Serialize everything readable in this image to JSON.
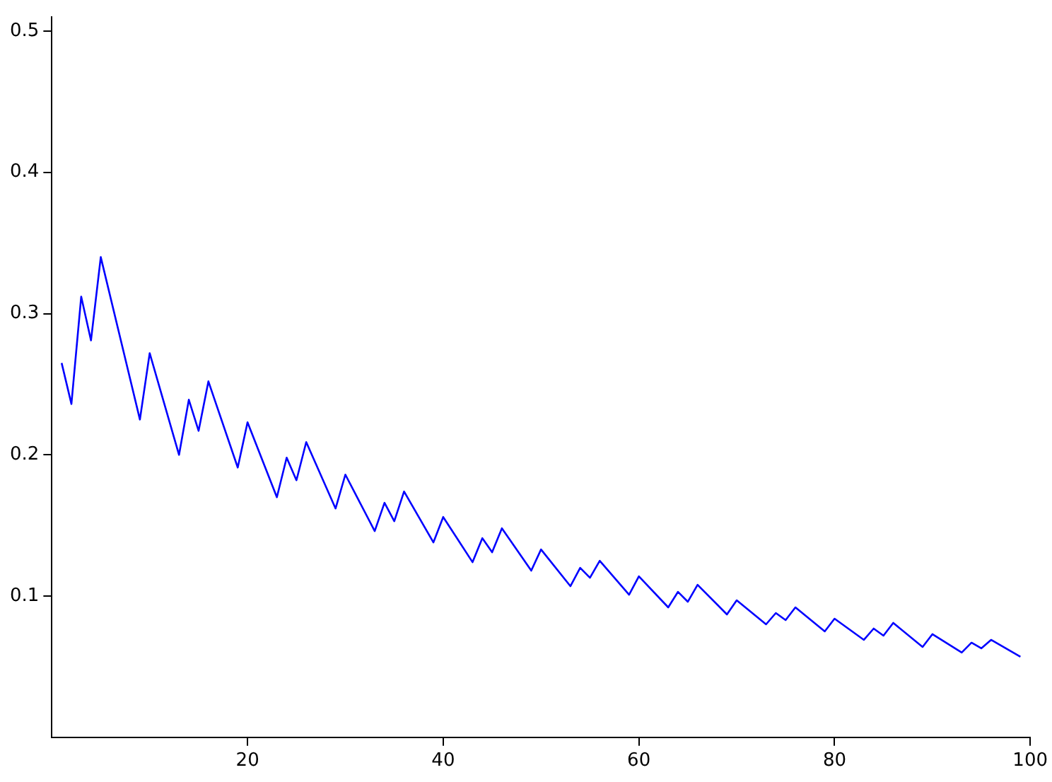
{
  "chart_data": {
    "type": "line",
    "xlim": [
      0,
      100
    ],
    "ylim": [
      0,
      0.51
    ],
    "xticks": [
      20,
      40,
      60,
      80,
      100
    ],
    "yticks": [
      0.1,
      0.2,
      0.3,
      0.4,
      0.5
    ],
    "grid": false,
    "legend": false,
    "marker": "none",
    "line_style": "solid",
    "series": [
      {
        "color": "#0000ff",
        "x": [
          1,
          2,
          3,
          4,
          5,
          9,
          10,
          13,
          14,
          15,
          16,
          19,
          20,
          23,
          24,
          25,
          26,
          29,
          30,
          33,
          34,
          35,
          36,
          39,
          40,
          43,
          44,
          45,
          46,
          49,
          50,
          53,
          54,
          55,
          56,
          59,
          60,
          63,
          64,
          65,
          66,
          69,
          70,
          73,
          74,
          75,
          76,
          79,
          80,
          83,
          84,
          85,
          86,
          89,
          90,
          93,
          94,
          95,
          96,
          99
        ],
        "values": [
          0.265,
          0.236,
          0.312,
          0.281,
          0.34,
          0.225,
          0.272,
          0.2,
          0.239,
          0.217,
          0.252,
          0.191,
          0.223,
          0.17,
          0.198,
          0.182,
          0.209,
          0.162,
          0.186,
          0.146,
          0.166,
          0.153,
          0.174,
          0.138,
          0.156,
          0.124,
          0.141,
          0.131,
          0.148,
          0.118,
          0.133,
          0.107,
          0.12,
          0.113,
          0.125,
          0.101,
          0.114,
          0.092,
          0.103,
          0.096,
          0.108,
          0.087,
          0.097,
          0.08,
          0.088,
          0.083,
          0.092,
          0.075,
          0.084,
          0.069,
          0.077,
          0.072,
          0.081,
          0.064,
          0.073,
          0.06,
          0.067,
          0.063,
          0.069,
          0.057
        ]
      }
    ]
  }
}
